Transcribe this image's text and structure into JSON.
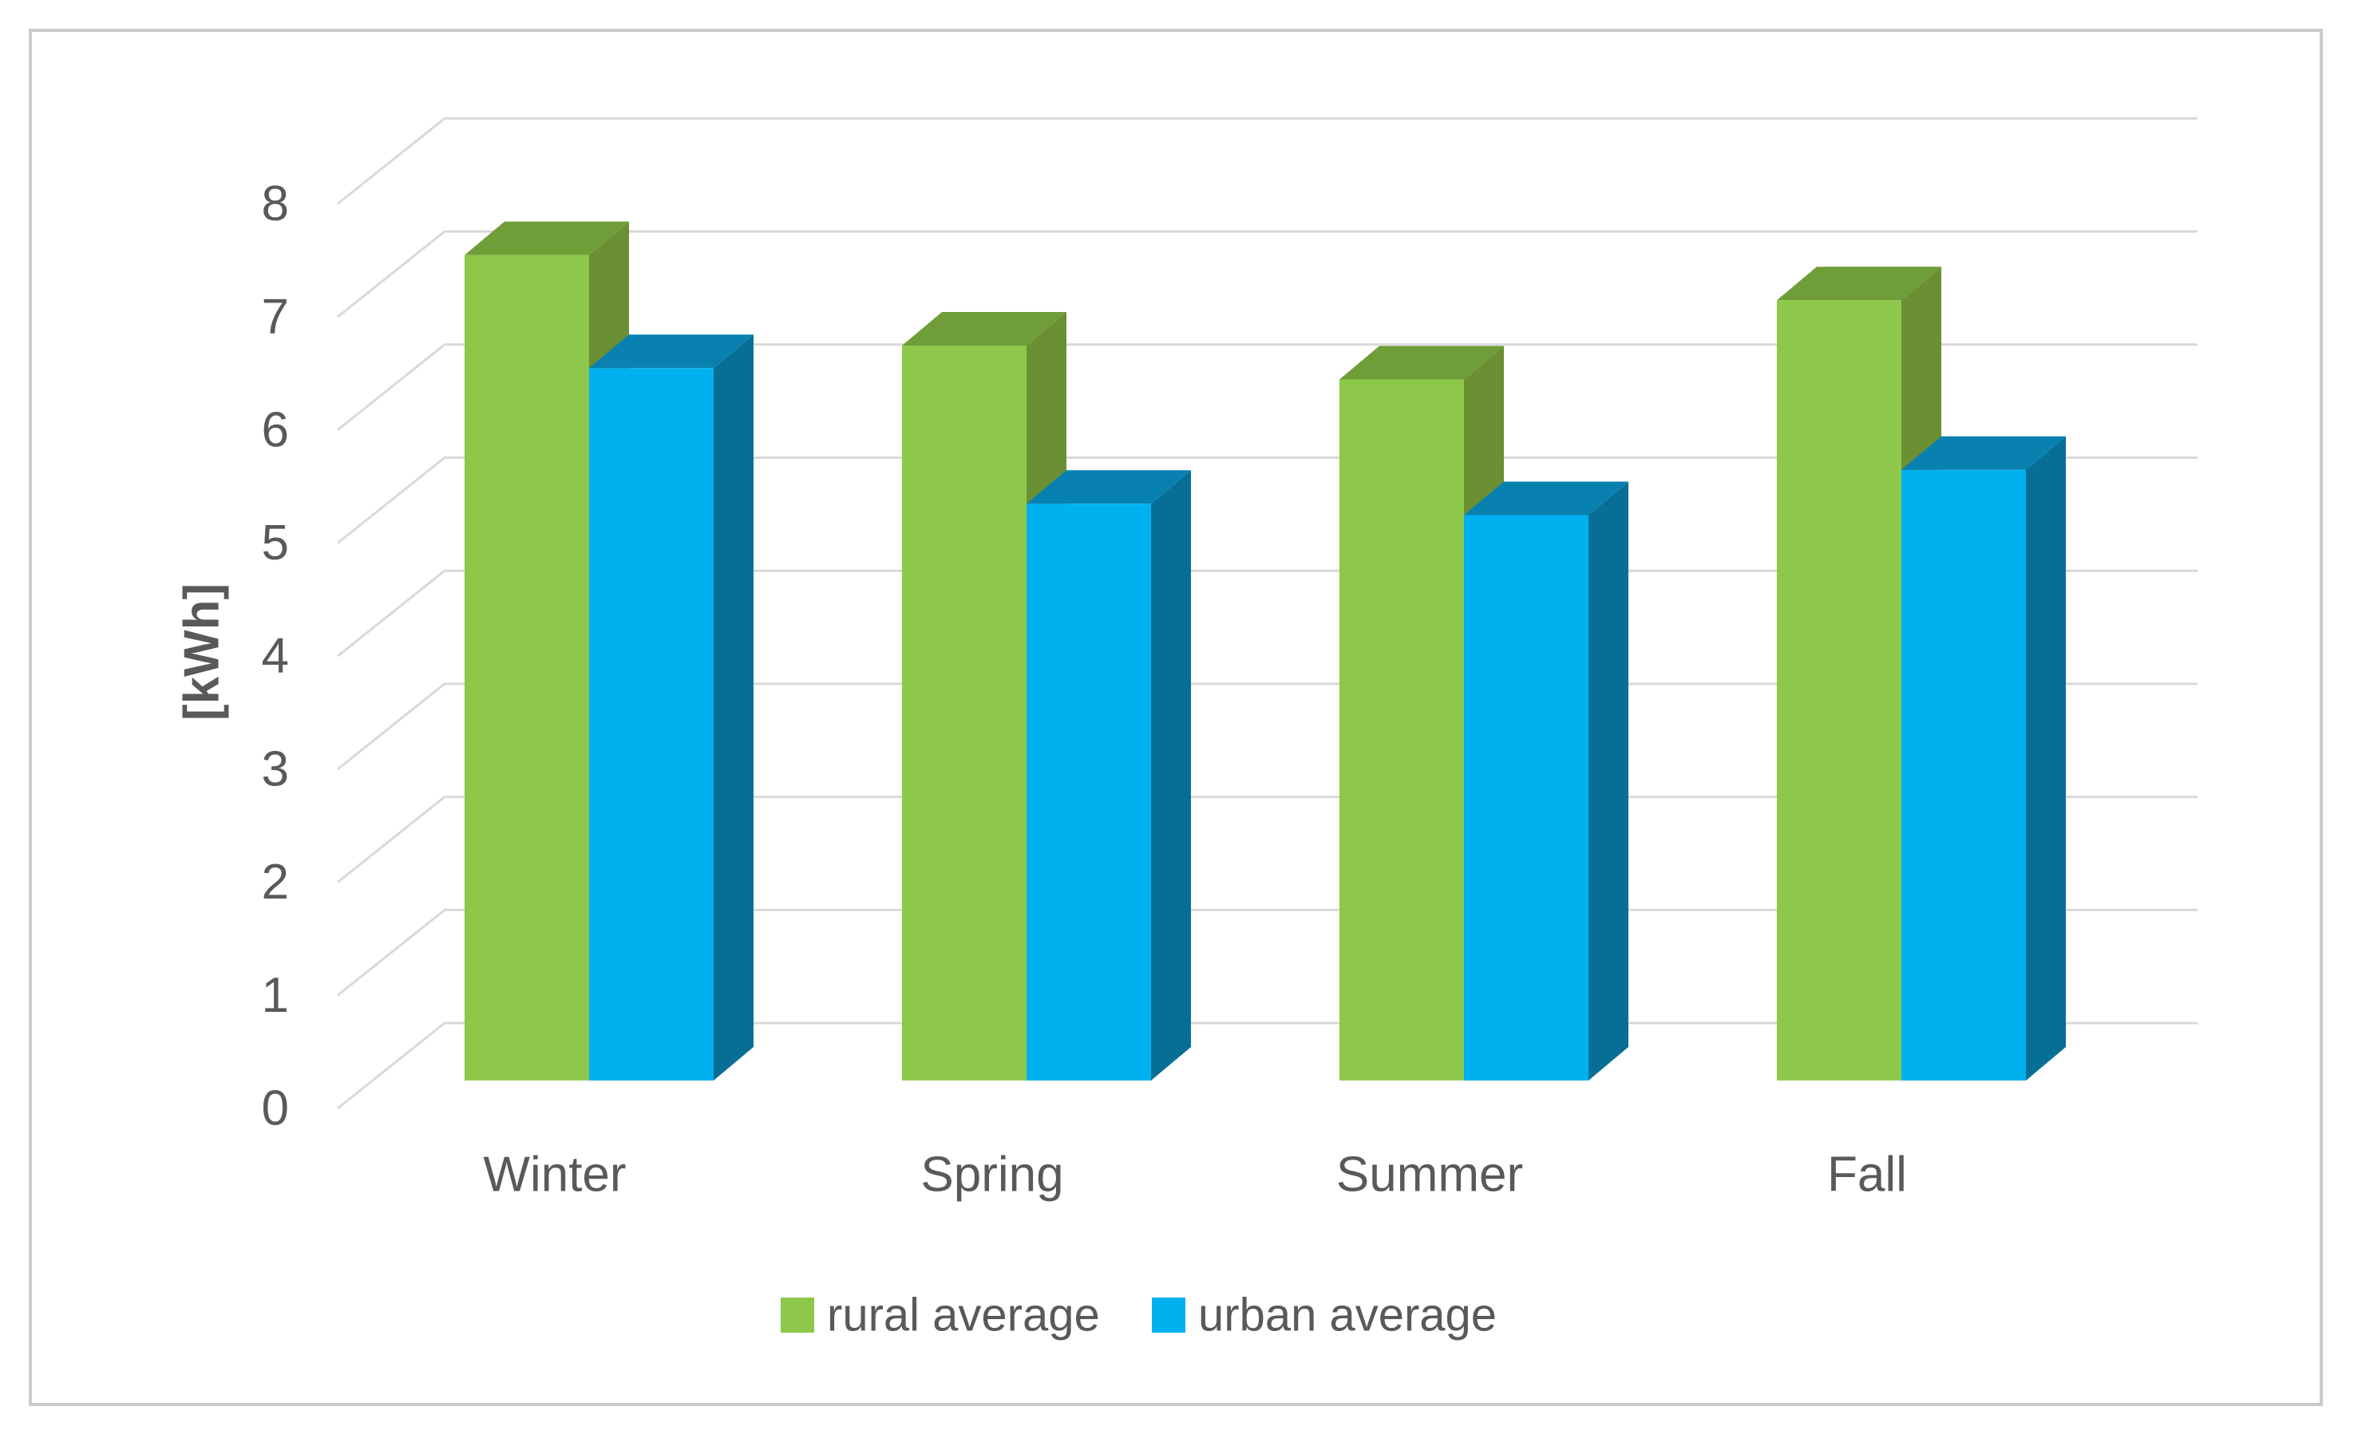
{
  "chart_data": {
    "type": "bar",
    "projection": "3d-clustered-column",
    "title": "",
    "categories": [
      "Winter",
      "Spring",
      "Summer",
      "Fall"
    ],
    "series": [
      {
        "name": "rural average",
        "color": "#8DC84B",
        "color_top": "#6F9E38",
        "color_side": "#6B8F33",
        "values": [
          7.3,
          6.5,
          6.2,
          6.9
        ]
      },
      {
        "name": "urban average",
        "color": "#00B1F0",
        "color_top": "#0881B1",
        "color_side": "#076F96",
        "values": [
          6.3,
          5.1,
          5.0,
          5.4
        ]
      }
    ],
    "xlabel": "",
    "ylabel": "[kWh]",
    "ylim": [
      0,
      8
    ],
    "yticks": [
      0,
      1,
      2,
      3,
      4,
      5,
      6,
      7,
      8
    ],
    "grid": true,
    "legend_position": "bottom",
    "gridline_color": "#D9D9D9",
    "text_color": "#595959",
    "border_color": "#CBCBCB",
    "background": "#FFFFFF"
  }
}
